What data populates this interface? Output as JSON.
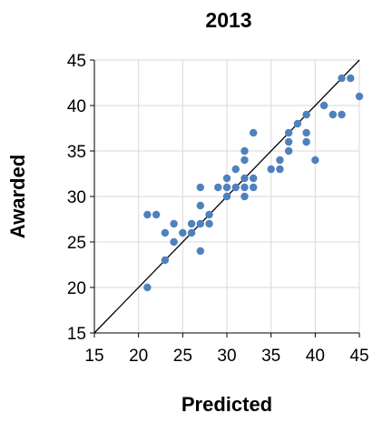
{
  "chart_data": {
    "type": "scatter",
    "title": "2013",
    "xlabel": "Predicted",
    "ylabel": "Awarded",
    "xlim": [
      15,
      45
    ],
    "ylim": [
      15,
      45
    ],
    "xticks": [
      15,
      20,
      25,
      30,
      35,
      40,
      45
    ],
    "yticks": [
      15,
      20,
      25,
      30,
      35,
      40,
      45
    ],
    "grid": true,
    "legend": "none",
    "colors": {
      "points": "#4f81bd",
      "reference_line": "#000000",
      "grid": "#d9d9d9"
    },
    "reference_line": {
      "from": [
        15,
        15
      ],
      "to": [
        45,
        45
      ]
    },
    "points": [
      {
        "x": 21,
        "y": 28
      },
      {
        "x": 22,
        "y": 28
      },
      {
        "x": 21,
        "y": 20
      },
      {
        "x": 23,
        "y": 23
      },
      {
        "x": 23,
        "y": 26
      },
      {
        "x": 24,
        "y": 27
      },
      {
        "x": 24,
        "y": 25
      },
      {
        "x": 25,
        "y": 26
      },
      {
        "x": 26,
        "y": 26
      },
      {
        "x": 26,
        "y": 27
      },
      {
        "x": 27,
        "y": 27
      },
      {
        "x": 27,
        "y": 24
      },
      {
        "x": 27,
        "y": 29
      },
      {
        "x": 27,
        "y": 31
      },
      {
        "x": 28,
        "y": 27
      },
      {
        "x": 28,
        "y": 28
      },
      {
        "x": 29,
        "y": 31
      },
      {
        "x": 30,
        "y": 31
      },
      {
        "x": 30,
        "y": 30
      },
      {
        "x": 30,
        "y": 32
      },
      {
        "x": 31,
        "y": 31
      },
      {
        "x": 31,
        "y": 33
      },
      {
        "x": 32,
        "y": 32
      },
      {
        "x": 32,
        "y": 31
      },
      {
        "x": 32,
        "y": 30
      },
      {
        "x": 32,
        "y": 34
      },
      {
        "x": 32,
        "y": 35
      },
      {
        "x": 33,
        "y": 37
      },
      {
        "x": 33,
        "y": 32
      },
      {
        "x": 33,
        "y": 31
      },
      {
        "x": 35,
        "y": 33
      },
      {
        "x": 36,
        "y": 34
      },
      {
        "x": 36,
        "y": 33
      },
      {
        "x": 37,
        "y": 35
      },
      {
        "x": 37,
        "y": 36
      },
      {
        "x": 37,
        "y": 37
      },
      {
        "x": 38,
        "y": 38
      },
      {
        "x": 39,
        "y": 39
      },
      {
        "x": 39,
        "y": 37
      },
      {
        "x": 39,
        "y": 36
      },
      {
        "x": 40,
        "y": 34
      },
      {
        "x": 41,
        "y": 40
      },
      {
        "x": 42,
        "y": 39
      },
      {
        "x": 43,
        "y": 39
      },
      {
        "x": 43,
        "y": 43
      },
      {
        "x": 44,
        "y": 43
      },
      {
        "x": 45,
        "y": 41
      }
    ]
  }
}
